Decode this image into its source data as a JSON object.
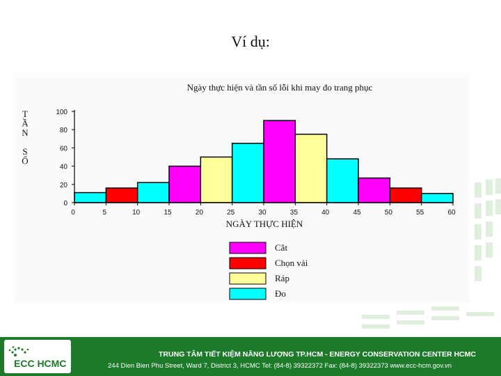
{
  "slide": {
    "title": "Ví dụ:"
  },
  "chart_data": {
    "type": "bar",
    "title": "Ngày thực hiện và tần số lỗi khi may đo trang phục",
    "xlabel": "NGÀY THỰC HIỆN",
    "ylabel": [
      "T",
      "Ầ",
      "N",
      "",
      "S",
      "Ố"
    ],
    "ylim": [
      0,
      100
    ],
    "yticks": [
      "0",
      "20",
      "40",
      "60",
      "80",
      "100"
    ],
    "xticks": [
      "0",
      "5",
      "10",
      "15",
      "20",
      "25",
      "30",
      "35",
      "40",
      "45",
      "50",
      "55",
      "60"
    ],
    "grid": false,
    "legend_position": "bottom",
    "series": [
      {
        "name": "Cắt",
        "color": "#ff00ff"
      },
      {
        "name": "Chọn vải",
        "color": "#ff0000"
      },
      {
        "name": "Ráp",
        "color": "#ffff99"
      },
      {
        "name": "Đo",
        "color": "#00ffff"
      }
    ],
    "bars": [
      {
        "x0": 0,
        "x1": 5,
        "value": 11,
        "series": "Đo"
      },
      {
        "x0": 5,
        "x1": 10,
        "value": 16,
        "series": "Chọn vải"
      },
      {
        "x0": 10,
        "x1": 15,
        "value": 22,
        "series": "Đo"
      },
      {
        "x0": 15,
        "x1": 20,
        "value": 40,
        "series": "Cắt"
      },
      {
        "x0": 20,
        "x1": 25,
        "value": 50,
        "series": "Ráp"
      },
      {
        "x0": 25,
        "x1": 30,
        "value": 65,
        "series": "Đo"
      },
      {
        "x0": 30,
        "x1": 35,
        "value": 90,
        "series": "Cắt"
      },
      {
        "x0": 35,
        "x1": 40,
        "value": 75,
        "series": "Ráp"
      },
      {
        "x0": 40,
        "x1": 45,
        "value": 48,
        "series": "Đo"
      },
      {
        "x0": 45,
        "x1": 50,
        "value": 27,
        "series": "Cắt"
      },
      {
        "x0": 50,
        "x1": 55,
        "value": 16,
        "series": "Chọn vải"
      },
      {
        "x0": 55,
        "x1": 60,
        "value": 10,
        "series": "Đo"
      }
    ]
  },
  "footer": {
    "org_name": "TRUNG TÂM TIẾT KIỆM NĂNG LƯỢNG TP.HCM  - ENERGY CONSERVATION CENTER HCMC",
    "contact": "244 Dien Bien Phu Street, Ward 7, District 3, HCMC   Tel: (84-8) 39322372   Fax: (84-8) 39322373    www.ecc-hcm.gov.vn",
    "logo_text": "ECC HCMC",
    "color": "#1d7a2a"
  }
}
